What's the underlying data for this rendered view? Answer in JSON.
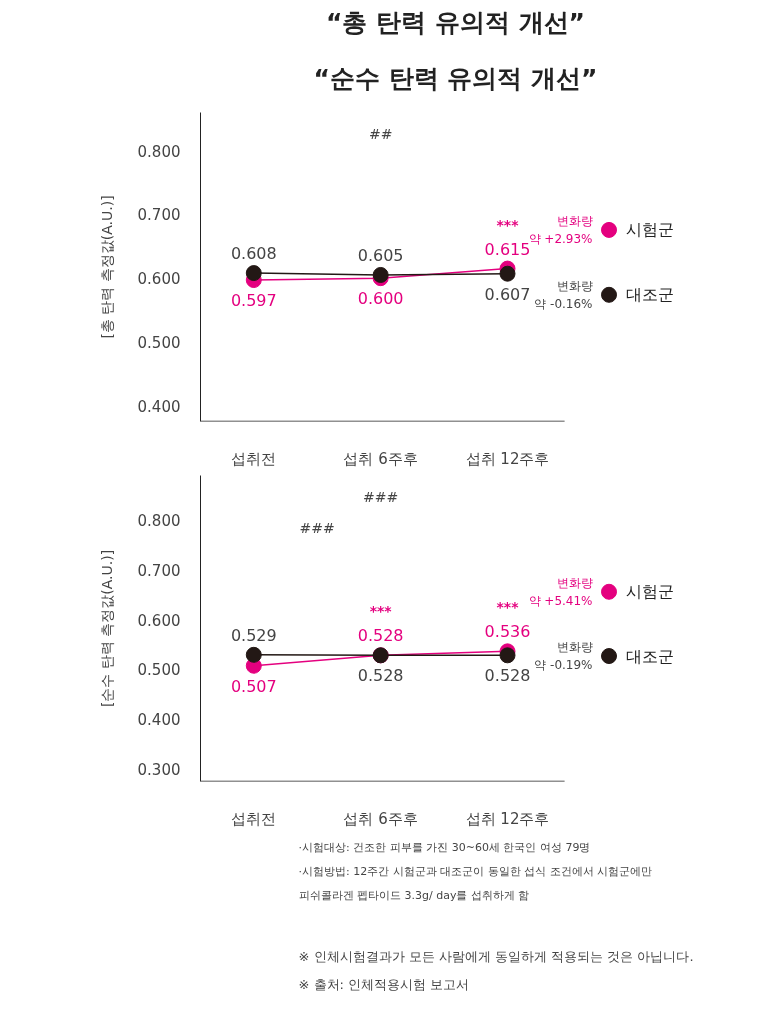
{
  "chart_data": [
    {
      "type": "line",
      "title": "“총 탄력 유의적 개선”",
      "subtitle": "“순수 탄력 유의적 개선”",
      "ylabel": "[총 탄력 측정값(A.U.)]",
      "categories": [
        "섭취전",
        "섭취 6주후",
        "섭취 12주후"
      ],
      "ylim": [
        0.375,
        0.86
      ],
      "yticks": [
        {
          "value": 0.4,
          "label": "0.400"
        },
        {
          "value": 0.5,
          "label": "0.500"
        },
        {
          "value": 0.6,
          "label": "0.600"
        },
        {
          "value": 0.7,
          "label": "0.700"
        },
        {
          "value": 0.8,
          "label": "0.800"
        }
      ],
      "marker": "circle",
      "line_style": "solid",
      "grid": false,
      "legend": "right",
      "series": [
        {
          "name": "시험군",
          "color": "#e4007f",
          "values": [
            0.597,
            0.6,
            0.615
          ],
          "value_labels": [
            "0.597",
            "0.600",
            "0.615"
          ]
        },
        {
          "name": "대조군",
          "color": "#231815",
          "values": [
            0.608,
            0.605,
            0.607
          ],
          "value_labels": [
            "0.608",
            "0.605",
            "0.607"
          ]
        }
      ],
      "annotations": [
        {
          "text": "***",
          "x": "섭취 12주후",
          "y": 0.615
        },
        "##",
        "변화량\n약 +2.93%",
        "변화량\n약 -0.16%"
      ]
    },
    {
      "type": "line",
      "ylabel": "[순수 탄력 측정값(A.U.)]",
      "categories": [
        "섭취전",
        "섭취 6주후",
        "섭취 12주후"
      ],
      "ylim": [
        0.274,
        0.89
      ],
      "yticks": [
        {
          "value": 0.3,
          "label": "0.300"
        },
        {
          "value": 0.4,
          "label": "0.400"
        },
        {
          "value": 0.5,
          "label": "0.500"
        },
        {
          "value": 0.6,
          "label": "0.600"
        },
        {
          "value": 0.7,
          "label": "0.700"
        },
        {
          "value": 0.8,
          "label": "0.800"
        }
      ],
      "marker": "circle",
      "line_style": "solid",
      "grid": false,
      "legend": "right",
      "series": [
        {
          "name": "시험군",
          "color": "#e4007f",
          "values": [
            0.507,
            0.528,
            0.536
          ],
          "value_labels": [
            "0.507",
            "0.528",
            "0.536"
          ]
        },
        {
          "name": "대조군",
          "color": "#231815",
          "values": [
            0.529,
            0.528,
            0.528
          ],
          "value_labels": [
            "0.529",
            "0.528",
            "0.528"
          ]
        }
      ],
      "annotations": [
        {
          "text": "***",
          "x": "섭취 6주후",
          "y": 0.528
        },
        {
          "text": "***",
          "x": "섭취 12주후",
          "y": 0.536
        },
        "###",
        "###",
        "변화량\n약 +5.41%",
        "변화량\n약 -0.19%"
      ]
    },
    {
      "type": "other",
      "annotations": [
        "·시험대상: 건조한 피부를 가진 30~60세 한국인 여성 79명",
        "·시험방법: 12주간 시험군과 대조군이 동일한 섭식 조건에서 시험군에만",
        "  피쉬콜라겐 펩타이드 3.3g/ day를 섭취하게 함",
        "※ 인체시험결과가 모든 사람에게 동일하게 적용되는 것은 아닙니다.",
        "※ 출처: 인체적용시험 보고서"
      ]
    }
  ]
}
